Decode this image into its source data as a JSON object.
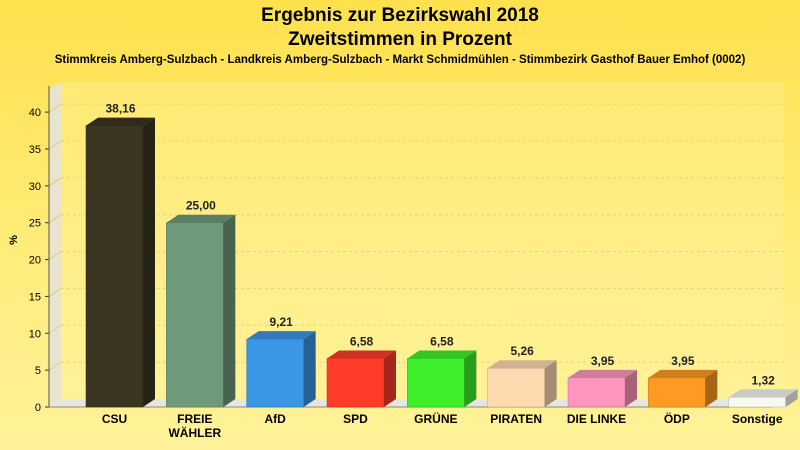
{
  "chart_data": {
    "type": "bar",
    "title": "Ergebnis zur Bezirkswahl 2018",
    "subtitle": "Zweitstimmen in Prozent",
    "caption": "Stimmkreis Amberg-Sulzbach - Landkreis Amberg-Sulzbach - Markt Schmidmühlen - Stimmbezirk Gasthof Bauer Emhof (0002)",
    "ylabel": "%",
    "ylim": [
      0,
      43
    ],
    "yticks": [
      0,
      5,
      10,
      15,
      20,
      25,
      30,
      35,
      40
    ],
    "grid": true,
    "categories": [
      [
        "CSU"
      ],
      [
        "FREIE",
        "WÄHLER"
      ],
      [
        "AfD"
      ],
      [
        "SPD"
      ],
      [
        "GRÜNE"
      ],
      [
        "PIRATEN"
      ],
      [
        "DIE LINKE"
      ],
      [
        "ÖDP"
      ],
      [
        "Sonstige"
      ]
    ],
    "values": [
      38.16,
      25.0,
      9.21,
      6.58,
      6.58,
      5.26,
      3.95,
      3.95,
      1.32
    ],
    "value_labels": [
      "38,16",
      "25,00",
      "9,21",
      "6,58",
      "6,58",
      "5,26",
      "3,95",
      "3,95",
      "1,32"
    ],
    "colors": [
      "#3a3520",
      "#6f9a7a",
      "#3a97e6",
      "#ff3b2a",
      "#3ef02a",
      "#ffd9b0",
      "#ff96c0",
      "#ff9a22",
      "#f8f8f0"
    ]
  }
}
